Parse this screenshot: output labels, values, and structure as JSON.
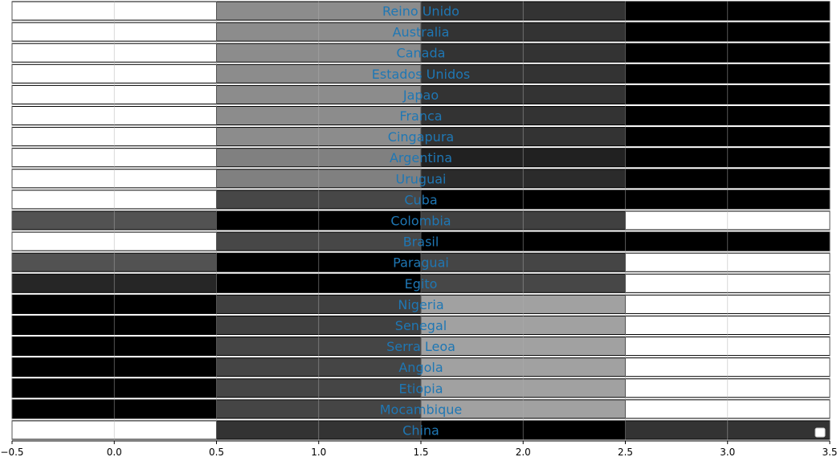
{
  "chart_data": {
    "type": "heatmap",
    "title": "",
    "xlabel": "",
    "ylabel": "",
    "xlim": [
      -0.5,
      3.5
    ],
    "x_ticks": [
      -0.5,
      0.0,
      0.5,
      1.0,
      1.5,
      2.0,
      2.5,
      3.0,
      3.5
    ],
    "x_tick_labels": [
      "−0.5",
      "0.0",
      "0.5",
      "1.0",
      "1.5",
      "2.0",
      "2.5",
      "3.0",
      "3.5"
    ],
    "columns": [
      0,
      1,
      2,
      3
    ],
    "rows": [
      "Reino Unido",
      "Australia",
      "Canada",
      "Estados Unidos",
      "Japao",
      "Franca",
      "Cingapura",
      "Argentina",
      "Uruguai",
      "Cuba",
      "Colombia",
      "Brasil",
      "Paraguai",
      "Egito",
      "Nigeria",
      "Senegal",
      "Serra Leoa",
      "Angola",
      "Etiopia",
      "Mocambique",
      "China"
    ],
    "cell_brightness": [
      [
        1.0,
        0.55,
        0.2,
        0.0
      ],
      [
        1.0,
        0.55,
        0.2,
        0.0
      ],
      [
        1.0,
        0.55,
        0.2,
        0.0
      ],
      [
        1.0,
        0.55,
        0.2,
        0.0
      ],
      [
        1.0,
        0.55,
        0.2,
        0.0
      ],
      [
        1.0,
        0.55,
        0.2,
        0.0
      ],
      [
        1.0,
        0.55,
        0.2,
        0.0
      ],
      [
        1.0,
        0.5,
        0.13,
        0.0
      ],
      [
        1.0,
        0.5,
        0.17,
        0.0
      ],
      [
        1.0,
        0.28,
        0.0,
        0.0
      ],
      [
        0.32,
        0.0,
        0.25,
        1.0
      ],
      [
        1.0,
        0.28,
        0.0,
        0.0
      ],
      [
        0.32,
        0.0,
        0.27,
        1.0
      ],
      [
        0.15,
        0.0,
        0.28,
        1.0
      ],
      [
        0.0,
        0.25,
        0.63,
        1.0
      ],
      [
        0.0,
        0.25,
        0.63,
        1.0
      ],
      [
        0.0,
        0.27,
        0.63,
        1.0
      ],
      [
        0.0,
        0.27,
        0.63,
        1.0
      ],
      [
        0.0,
        0.27,
        0.63,
        1.0
      ],
      [
        0.0,
        0.27,
        0.63,
        1.0
      ],
      [
        1.0,
        0.2,
        0.0,
        0.2
      ]
    ],
    "label_color": "#1f77b4",
    "grid": true,
    "legend": "lower-right",
    "legend_entries": []
  }
}
